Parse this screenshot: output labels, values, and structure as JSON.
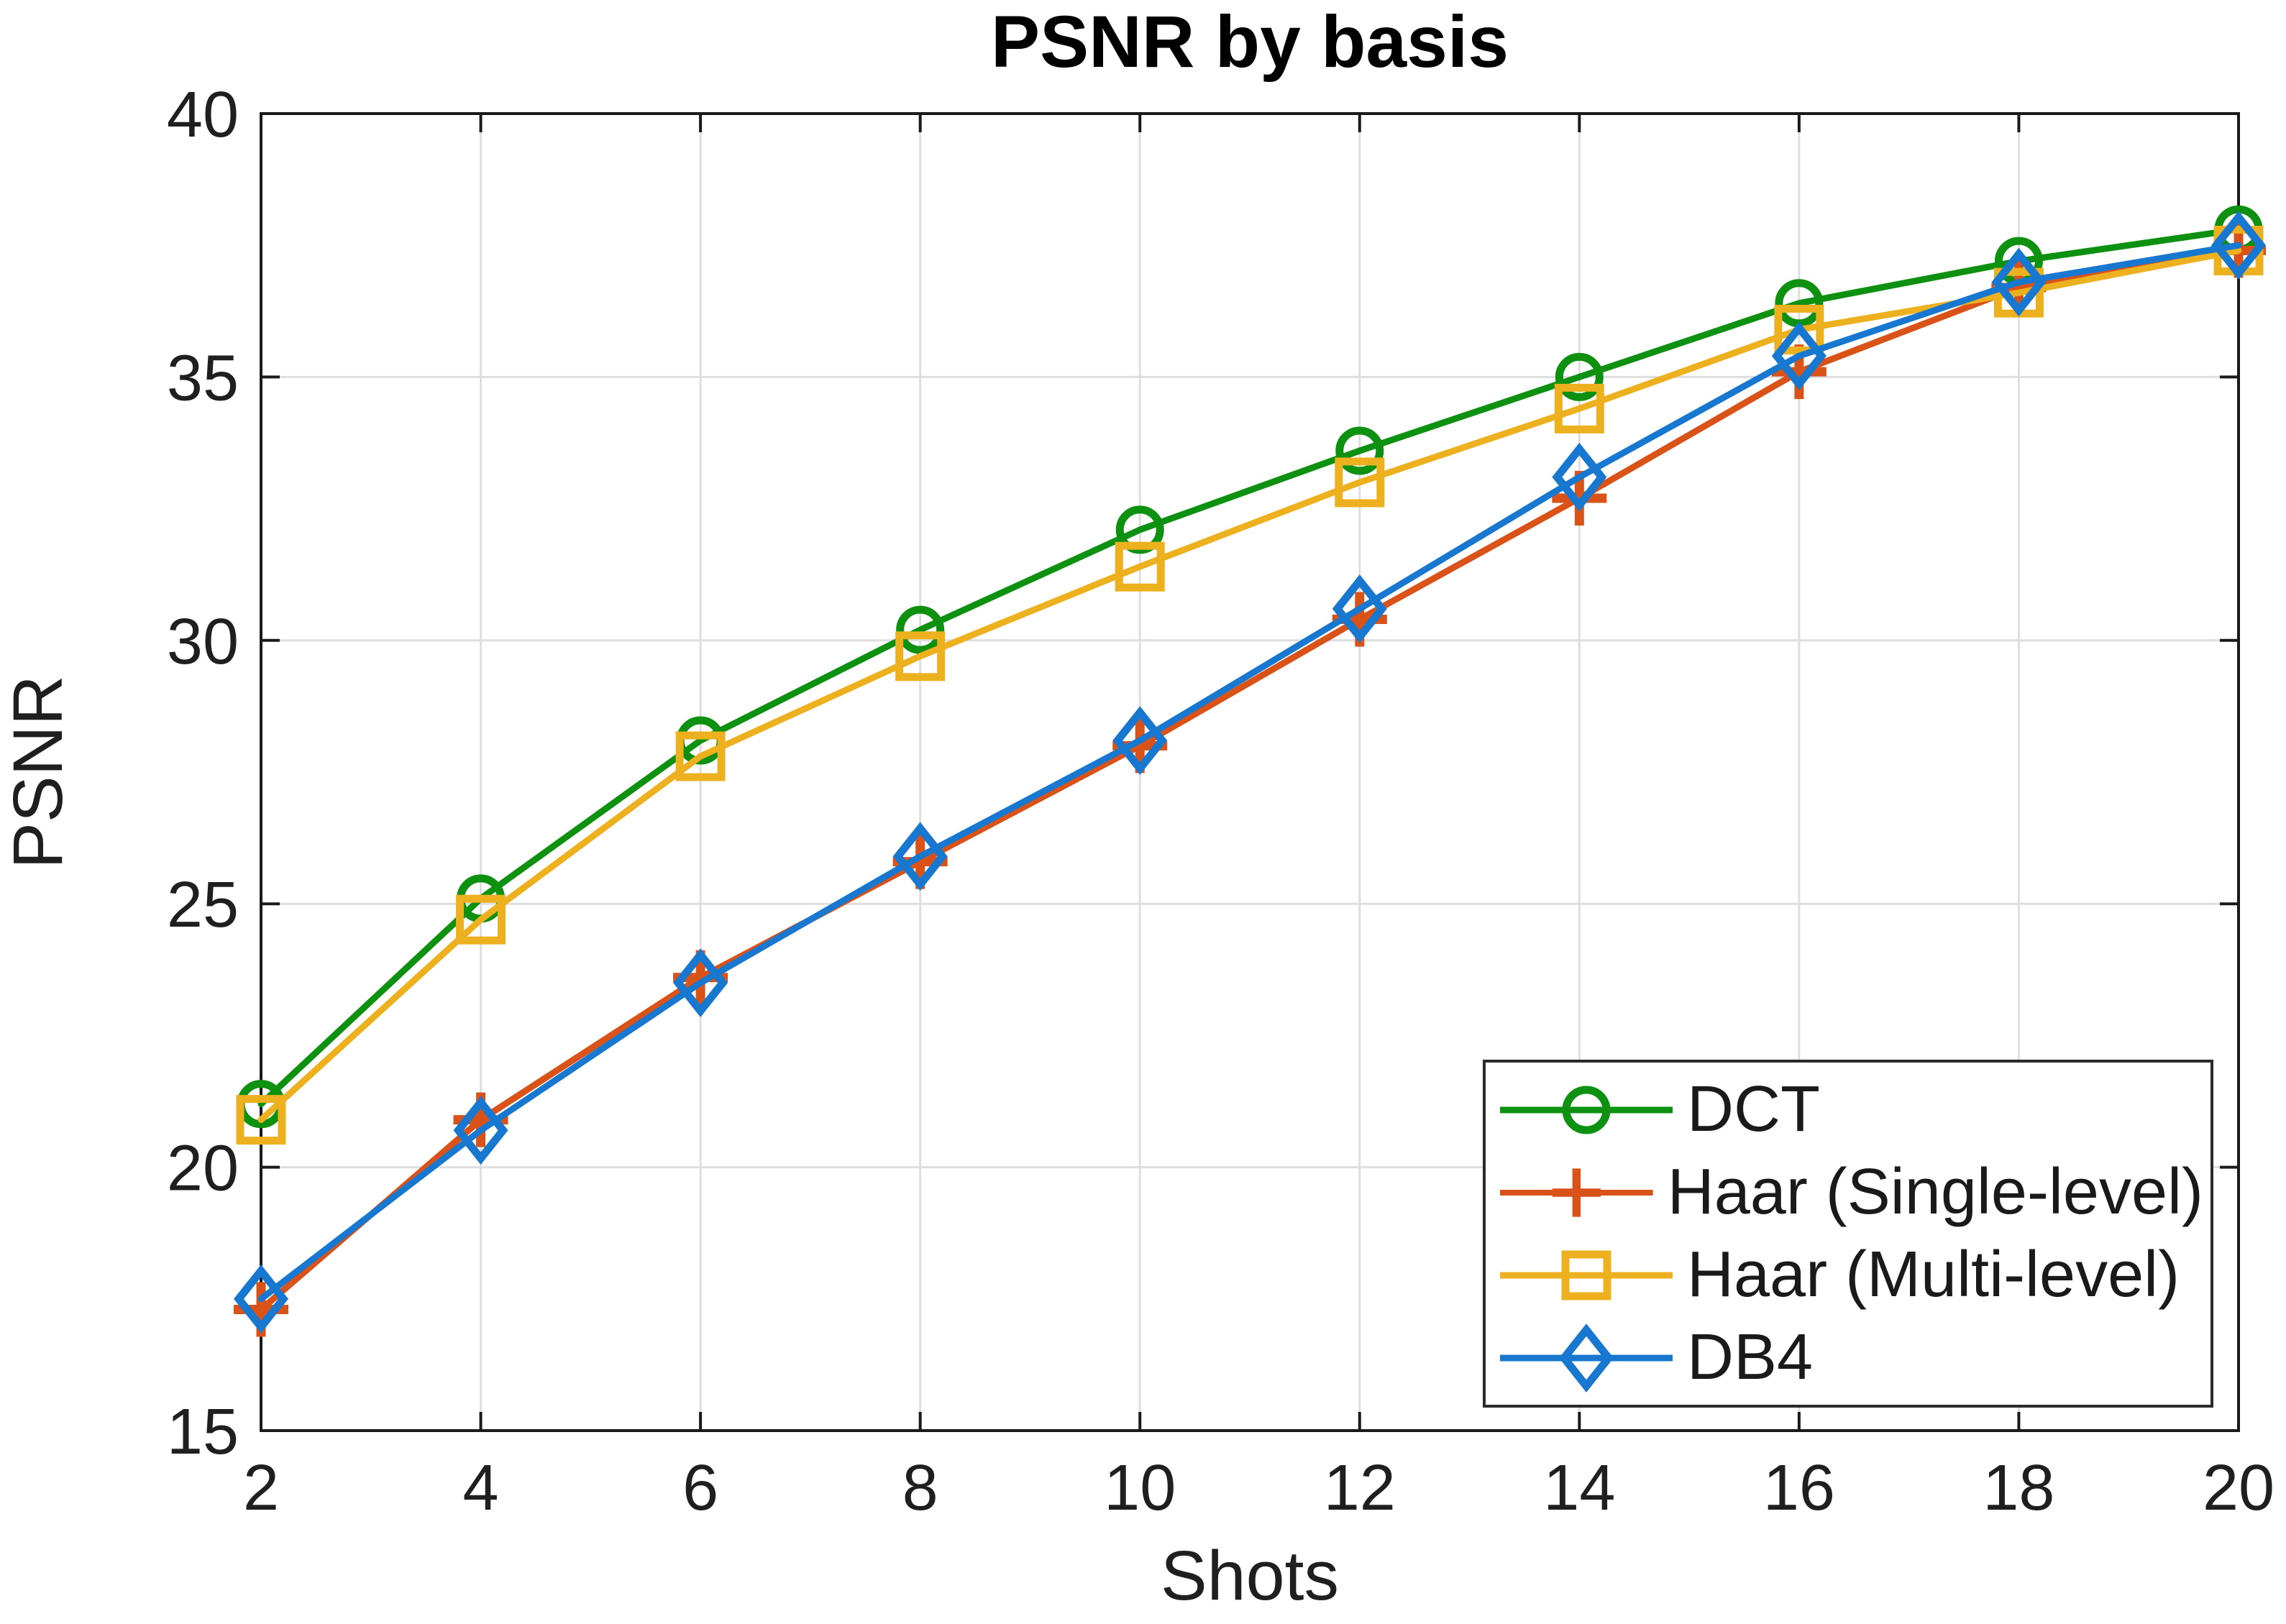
{
  "figure": {
    "background": "#FFFFFF"
  },
  "chart_data": {
    "type": "line",
    "title": "PSNR by basis",
    "xlabel": "Shots",
    "ylabel": "PSNR",
    "xlim": [
      2,
      20
    ],
    "ylim": [
      15,
      40
    ],
    "xticks": [
      2,
      4,
      6,
      8,
      10,
      12,
      14,
      16,
      18,
      20
    ],
    "yticks": [
      15,
      20,
      25,
      30,
      35,
      40
    ],
    "grid": true,
    "box": true,
    "axis_color": "#1A1A1A",
    "grid_color": "#DEDEDE",
    "text_color": "#1F1F1F",
    "legend": {
      "position": "bottom-right",
      "border_color": "#2A2A2A",
      "background": "#FFFFFF"
    },
    "x": [
      2,
      4,
      6,
      8,
      10,
      12,
      14,
      16,
      18,
      20
    ],
    "series": [
      {
        "name": "DCT",
        "color": "#0E9010",
        "marker": "circle",
        "values": [
          21.2,
          25.1,
          28.1,
          30.2,
          32.1,
          33.6,
          35.0,
          36.4,
          37.2,
          37.8
        ]
      },
      {
        "name": "Haar (Single-level)",
        "color": "#D95319",
        "marker": "plus",
        "values": [
          17.3,
          20.9,
          23.6,
          25.8,
          28.0,
          30.4,
          32.7,
          35.1,
          36.7,
          37.4
        ]
      },
      {
        "name": "Haar (Multi-level)",
        "color": "#EDB120",
        "marker": "square",
        "values": [
          20.9,
          24.7,
          27.8,
          29.7,
          31.4,
          33.0,
          34.4,
          35.9,
          36.6,
          37.4
        ]
      },
      {
        "name": "DB4",
        "color": "#1878D0",
        "marker": "diamond",
        "values": [
          17.5,
          20.7,
          23.5,
          25.9,
          28.1,
          30.6,
          33.1,
          35.4,
          36.8,
          37.5
        ]
      }
    ]
  }
}
